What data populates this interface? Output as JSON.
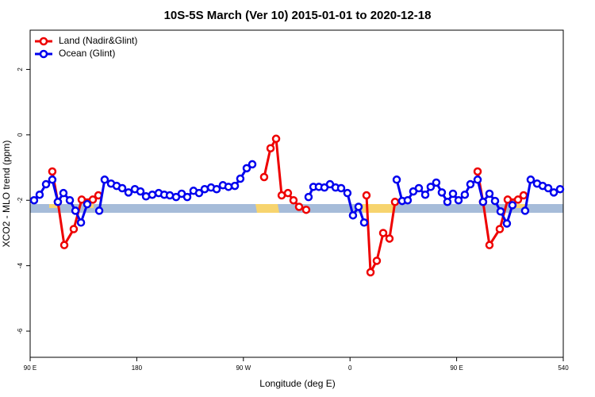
{
  "chart_data": {
    "type": "line",
    "title": "10S-5S March (Ver 10)   2015-01-01 to 2020-12-18",
    "x_label": "Longitude (deg E)",
    "y_label": "XCO2 - MLO trend (ppm)",
    "xlim": [
      90,
      540
    ],
    "ylim": [
      -6.8,
      3.2
    ],
    "xticks": [
      {
        "value": 90,
        "label": "90 E"
      },
      180,
      {
        "value": 270,
        "label": "90 W"
      },
      {
        "value": 360,
        "label": "0"
      },
      {
        "value": 450,
        "label": "90 E"
      },
      540
    ],
    "yticks": [
      2,
      0,
      -2,
      -4,
      -6
    ],
    "legend": "top-left",
    "series": [
      {
        "name": "Land (Nadir&Glint)",
        "color": "#ee0000",
        "x": [
          108.7,
          113.4,
          118.8,
          126.8,
          133.5,
          142.9,
          147.6,
          null,
          287.5,
          292.9,
          297.6,
          302.3,
          307.6,
          312.3,
          317.0,
          323.0,
          null,
          373.9,
          377.3,
          382.6,
          388.0,
          393.3,
          398.0,
          null,
          467.7,
          472.3,
          477.7,
          486.4,
          493.1,
          501.8,
          506.5
        ],
        "values": [
          -1.12,
          -2.05,
          -3.37,
          -2.88,
          -1.98,
          -1.98,
          -1.85,
          null,
          -1.29,
          -0.41,
          -0.12,
          -1.85,
          -1.78,
          -2.0,
          -2.2,
          -2.29,
          null,
          -1.85,
          -4.2,
          -3.85,
          -3.0,
          -3.17,
          -2.05,
          null,
          -1.12,
          -2.05,
          -3.37,
          -2.88,
          -1.98,
          -1.98,
          -1.85
        ]
      },
      {
        "name": "Ocean (Glint)",
        "color": "#0000ee",
        "x": [
          93.3,
          98.0,
          103.4,
          108.7,
          113.4,
          118.1,
          123.5,
          128.2,
          132.9,
          138.2,
          null,
          148.3,
          152.9,
          158.3,
          163.0,
          167.7,
          173.0,
          178.4,
          183.1,
          187.8,
          193.1,
          198.5,
          203.2,
          207.9,
          213.2,
          217.9,
          222.6,
          227.9,
          232.6,
          237.3,
          242.7,
          247.4,
          252.7,
          257.4,
          262.8,
          267.4,
          272.8,
          277.5,
          null,
          325.0,
          329.1,
          333.7,
          338.4,
          343.1,
          347.8,
          352.5,
          357.8,
          362.5,
          367.2,
          371.9,
          null,
          399.4,
          404.0,
          408.7,
          413.4,
          418.1,
          423.5,
          428.1,
          432.8,
          437.5,
          442.2,
          446.9,
          451.6,
          456.9,
          461.6,
          467.7,
          472.3,
          477.7,
          482.4,
          487.1,
          492.4,
          497.1,
          null,
          507.8,
          512.5,
          517.9,
          522.6,
          527.3,
          532.0,
          537.3
        ],
        "values": [
          -2.0,
          -1.83,
          -1.51,
          -1.37,
          -2.05,
          -1.78,
          -2.0,
          -2.32,
          -2.68,
          -2.12,
          null,
          -2.32,
          -1.37,
          -1.49,
          -1.56,
          -1.63,
          -1.76,
          -1.66,
          -1.73,
          -1.88,
          -1.83,
          -1.78,
          -1.83,
          -1.85,
          -1.9,
          -1.8,
          -1.9,
          -1.71,
          -1.78,
          -1.66,
          -1.61,
          -1.66,
          -1.54,
          -1.59,
          -1.56,
          -1.34,
          -1.02,
          -0.9,
          null,
          -1.9,
          -1.59,
          -1.59,
          -1.61,
          -1.51,
          -1.61,
          -1.63,
          -1.78,
          -2.46,
          -2.2,
          -2.68,
          null,
          -1.37,
          -2.02,
          -2.0,
          -1.73,
          -1.63,
          -1.83,
          -1.59,
          -1.46,
          -1.76,
          -2.05,
          -1.8,
          -2.0,
          -1.83,
          -1.51,
          -1.37,
          -2.05,
          -1.8,
          -2.02,
          -2.34,
          -2.71,
          -2.15,
          null,
          -2.32,
          -1.37,
          -1.49,
          -1.56,
          -1.63,
          -1.76,
          -1.66
        ]
      }
    ]
  }
}
